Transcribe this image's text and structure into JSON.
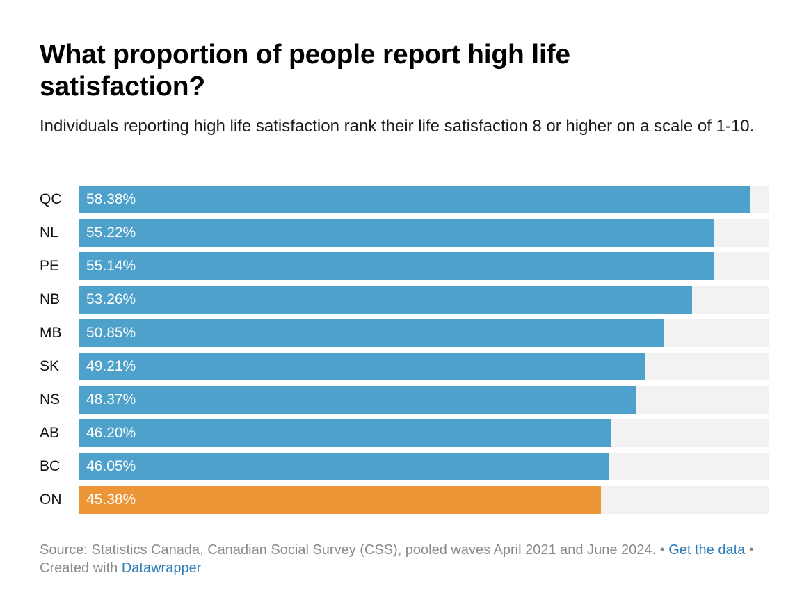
{
  "chart_data": {
    "type": "bar",
    "orientation": "horizontal",
    "title": "What proportion of people report high life satisfaction?",
    "subtitle": "Individuals reporting high life satisfaction rank their life satisfaction 8 or higher on a scale of 1-10.",
    "categories": [
      "QC",
      "NL",
      "PE",
      "NB",
      "MB",
      "SK",
      "NS",
      "AB",
      "BC",
      "ON"
    ],
    "values": [
      58.38,
      55.22,
      55.14,
      53.26,
      50.85,
      49.21,
      48.37,
      46.2,
      46.05,
      45.38
    ],
    "value_labels": [
      "58.38%",
      "55.22%",
      "55.14%",
      "53.26%",
      "50.85%",
      "49.21%",
      "48.37%",
      "46.20%",
      "46.05%",
      "45.38%"
    ],
    "highlighted": "ON",
    "xlim": [
      0,
      60
    ],
    "unit": "%",
    "colors": {
      "bar": "#4ea1cb",
      "highlight": "#ed9637",
      "track": "#f2f2f2"
    }
  },
  "footer": {
    "source_text": "Source: Statistics Canada, Canadian Social Survey (CSS), pooled waves April 2021 and June 2024.",
    "separator1": " • ",
    "get_data_link": "Get the data",
    "separator2": " • ",
    "created_with_text": "Created with ",
    "datawrapper_link": "Datawrapper"
  }
}
